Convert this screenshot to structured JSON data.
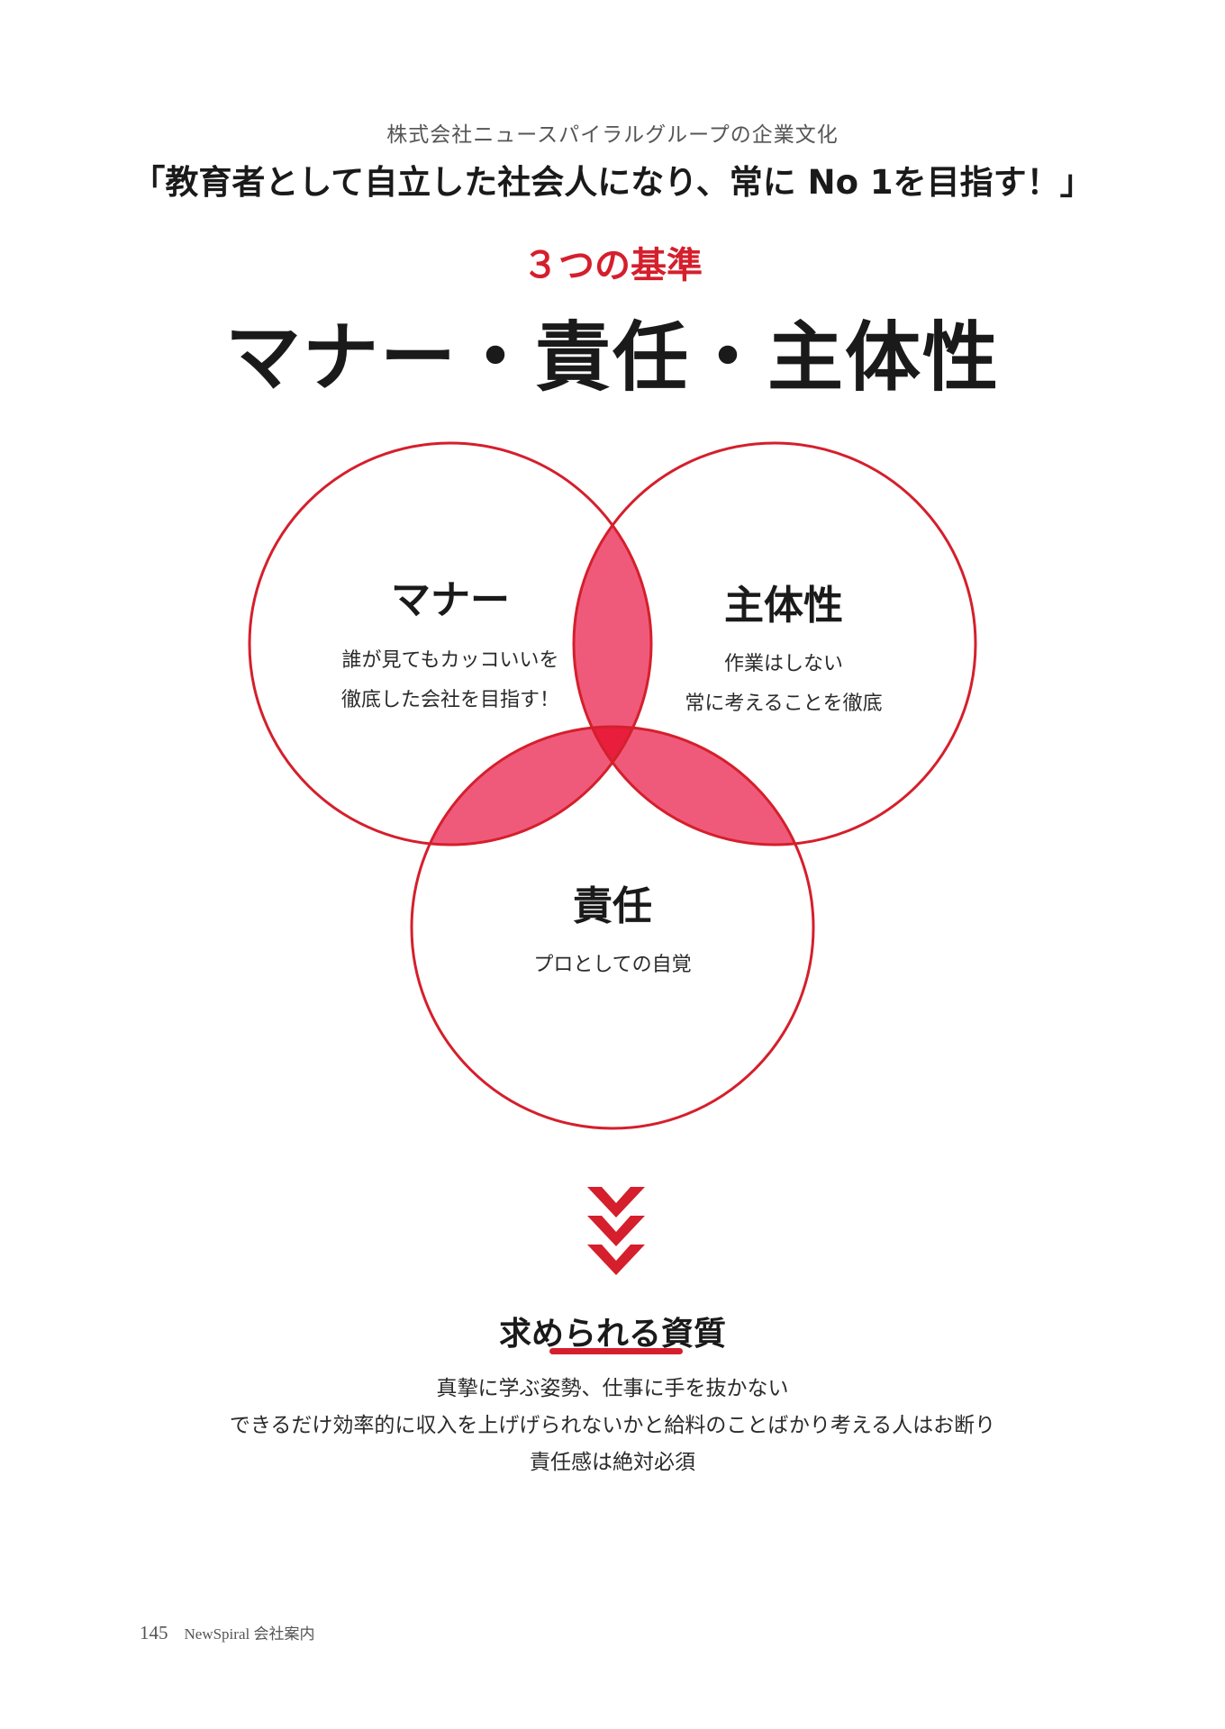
{
  "header": {
    "subtitle": "株式会社ニュースパイラルグループの企業文化",
    "motto": "「教育者として自立した社会人になり、常に No 1を目指す！」"
  },
  "criteria": {
    "eyebrow": "３つの基準",
    "headline": "マナー・責任・主体性"
  },
  "venn": {
    "circles": [
      {
        "title": "マナー",
        "lines": [
          "誰が見てもカッコいいを",
          "徹底した会社を目指す！"
        ]
      },
      {
        "title": "主体性",
        "lines": [
          "作業はしない",
          "常に考えることを徹底"
        ]
      },
      {
        "title": "責任",
        "lines": [
          "プロとしての自覚"
        ]
      }
    ],
    "colors": {
      "stroke": "#d51f2c",
      "overlap": "#f05a7a",
      "center": "#e81e3c"
    }
  },
  "qualities": {
    "title": "求められる資質",
    "lines": [
      "真摯に学ぶ姿勢、仕事に手を抜かない",
      "できるだけ効率的に収入を上げげられないかと給料のことばかり考える人はお断り",
      "責任感は絶対必須"
    ]
  },
  "icons": {
    "arrow": "triple-chevron-down-icon"
  },
  "footer": {
    "page_number": "145",
    "label": "NewSpiral 会社案内"
  }
}
